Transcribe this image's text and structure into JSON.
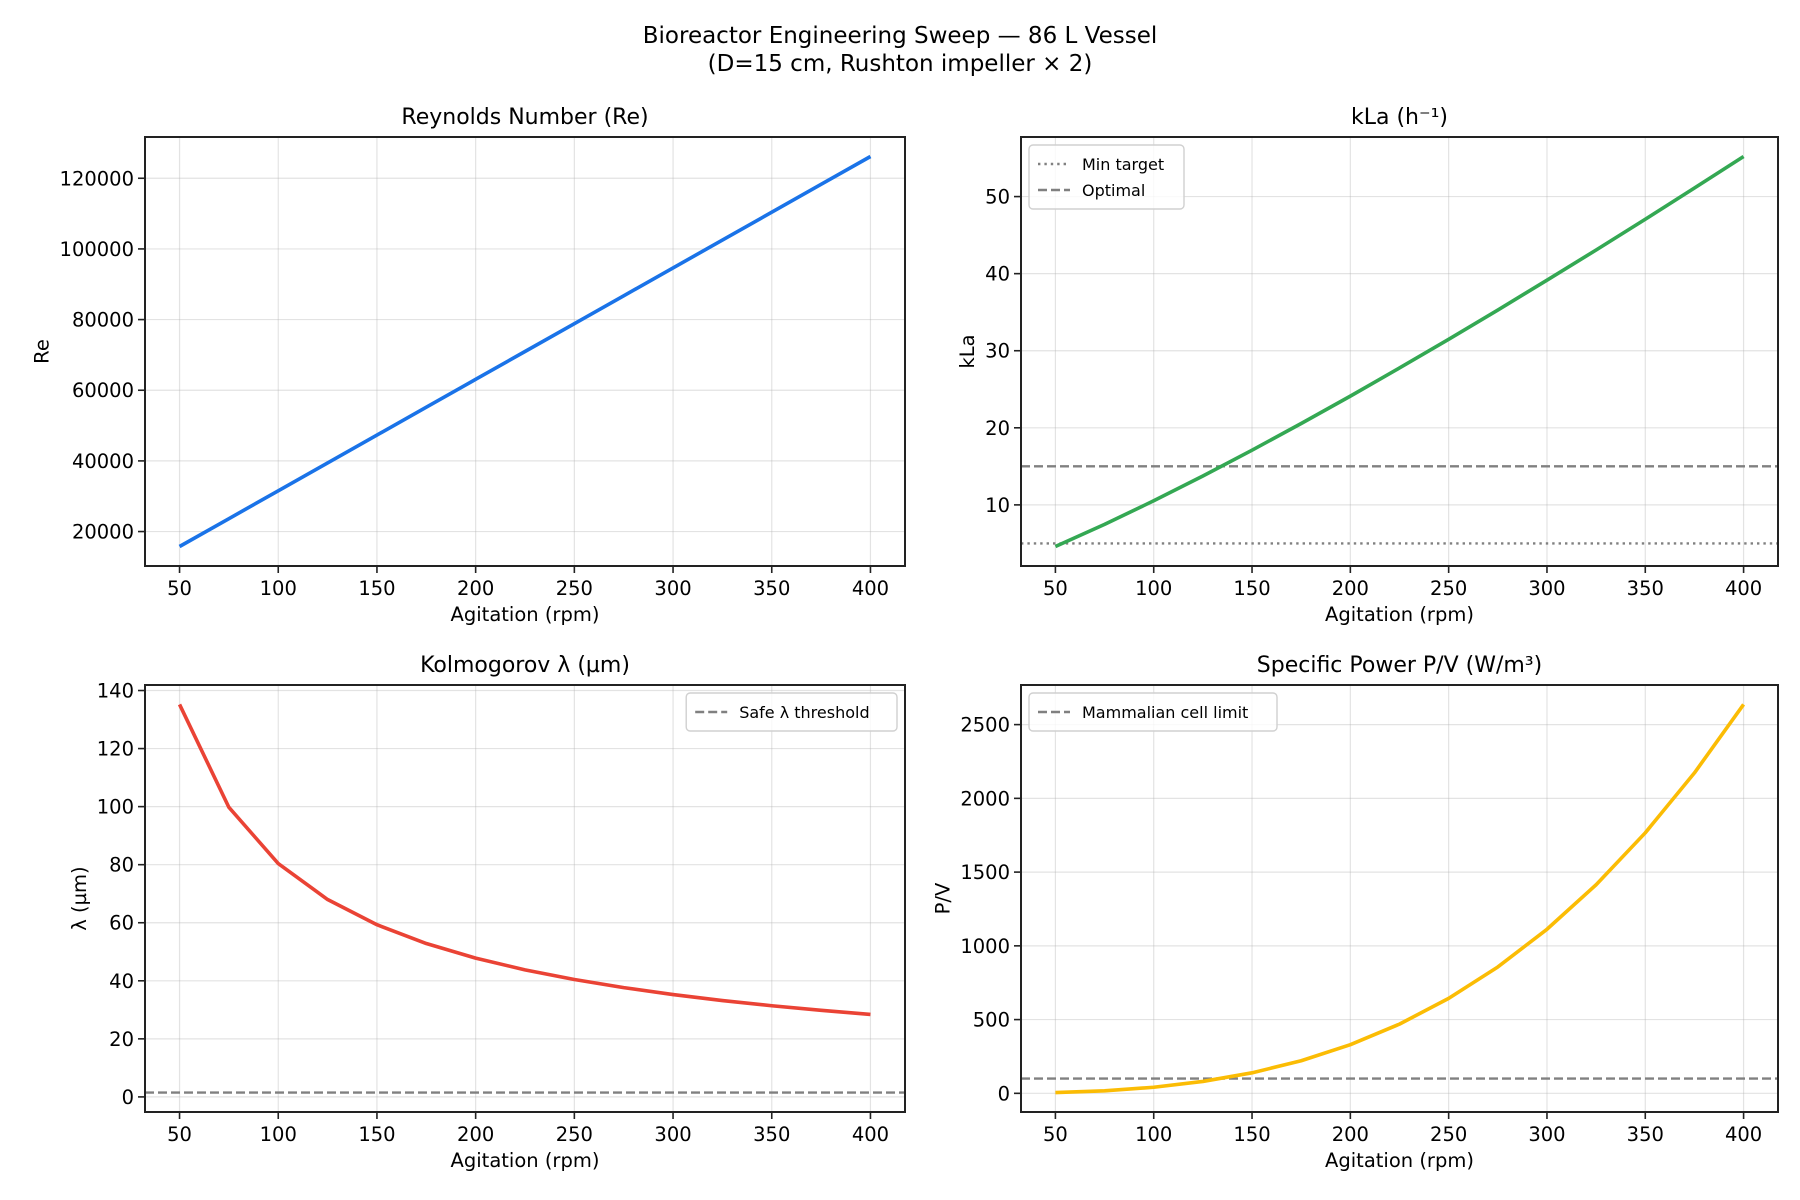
{
  "figure": {
    "title_line1": "Bioreactor Engineering Sweep — 86 L Vessel",
    "title_line2": "(D=15 cm, Rushton impeller × 2)"
  },
  "chart_data": [
    {
      "id": "reynolds",
      "type": "line",
      "title": "Reynolds Number (Re)",
      "xlabel": "Agitation (rpm)",
      "ylabel": "Re",
      "xlim": [
        32.5,
        417.5
      ],
      "ylim": [
        10250,
        131680
      ],
      "xticks": [
        50,
        100,
        150,
        200,
        250,
        300,
        350,
        400
      ],
      "yticks": [
        20000,
        40000,
        60000,
        80000,
        100000,
        120000
      ],
      "grid": true,
      "series": [
        {
          "name": "Re",
          "color": "#1a73e8",
          "x": [
            50,
            75,
            100,
            125,
            150,
            175,
            200,
            225,
            250,
            275,
            300,
            325,
            350,
            375,
            400
          ],
          "y": [
            15770,
            23655,
            31540,
            39425,
            47310,
            55195,
            63080,
            70965,
            78850,
            86735,
            94620,
            102505,
            110390,
            118275,
            126160
          ]
        }
      ],
      "reference_lines": [],
      "legend": null
    },
    {
      "id": "kla",
      "type": "line",
      "title": "kLa (h⁻¹)",
      "xlabel": "Agitation (rpm)",
      "ylabel": "kLa",
      "xlim": [
        32.5,
        417.5
      ],
      "ylim": [
        2.07,
        57.73
      ],
      "xticks": [
        50,
        100,
        150,
        200,
        250,
        300,
        350,
        400
      ],
      "yticks": [
        10,
        20,
        30,
        40,
        50
      ],
      "grid": true,
      "series": [
        {
          "name": "kLa",
          "color": "#34a853",
          "x": [
            50,
            75,
            100,
            125,
            150,
            175,
            200,
            225,
            250,
            275,
            300,
            325,
            350,
            375,
            400
          ],
          "y": [
            4.6,
            7.47,
            10.53,
            13.75,
            17.1,
            20.56,
            24.11,
            27.76,
            31.48,
            35.28,
            39.15,
            43.07,
            47.06,
            51.11,
            55.2
          ]
        }
      ],
      "reference_lines": [
        {
          "label": "Min target",
          "value": 5,
          "style": "dotted",
          "color": "#808080"
        },
        {
          "label": "Optimal",
          "value": 15,
          "style": "dashed",
          "color": "#808080"
        }
      ],
      "legend": "upper-left"
    },
    {
      "id": "kolmogorov",
      "type": "line",
      "title": "Kolmogorov λ (µm)",
      "xlabel": "Agitation (rpm)",
      "ylabel": "λ (µm)",
      "xlim": [
        32.5,
        417.5
      ],
      "ylim": [
        -5.2,
        141.9
      ],
      "xticks": [
        50,
        100,
        150,
        200,
        250,
        300,
        350,
        400
      ],
      "yticks": [
        0,
        20,
        40,
        60,
        80,
        100,
        120,
        140
      ],
      "grid": true,
      "series": [
        {
          "name": "λ",
          "color": "#ea4335",
          "x": [
            50,
            75,
            100,
            125,
            150,
            175,
            200,
            225,
            250,
            275,
            300,
            325,
            350,
            375,
            400
          ],
          "y": [
            135.2,
            99.75,
            80.39,
            68.0,
            59.31,
            52.84,
            47.81,
            43.76,
            40.44,
            37.64,
            35.26,
            33.2,
            31.41,
            29.83,
            28.42
          ]
        }
      ],
      "reference_lines": [
        {
          "label": "Safe λ threshold",
          "value": 1.5,
          "style": "dashed",
          "color": "#808080"
        }
      ],
      "legend": "upper-right"
    },
    {
      "id": "power",
      "type": "line",
      "title": "Specific Power P/V (W/m³)",
      "xlabel": "Agitation (rpm)",
      "ylabel": "P/V",
      "xlim": [
        32.5,
        417.5
      ],
      "ylim": [
        -126.6,
        2768.6
      ],
      "xticks": [
        50,
        100,
        150,
        200,
        250,
        300,
        350,
        400
      ],
      "yticks": [
        0,
        500,
        1000,
        1500,
        2000,
        2500
      ],
      "grid": true,
      "series": [
        {
          "name": "P/V",
          "color": "#fbbc04",
          "x": [
            50,
            75,
            100,
            125,
            150,
            175,
            200,
            225,
            250,
            275,
            300,
            325,
            350,
            375,
            400
          ],
          "y": [
            5.15,
            17.38,
            41.2,
            80.47,
            139.05,
            220.8,
            329.6,
            469.3,
            643.75,
            856.8,
            1112.4,
            1414.3,
            1766.5,
            2172.7,
            2636.8
          ]
        }
      ],
      "reference_lines": [
        {
          "label": "Mammalian cell limit",
          "value": 100,
          "style": "dashed",
          "color": "#808080"
        }
      ],
      "legend": "upper-left"
    }
  ]
}
